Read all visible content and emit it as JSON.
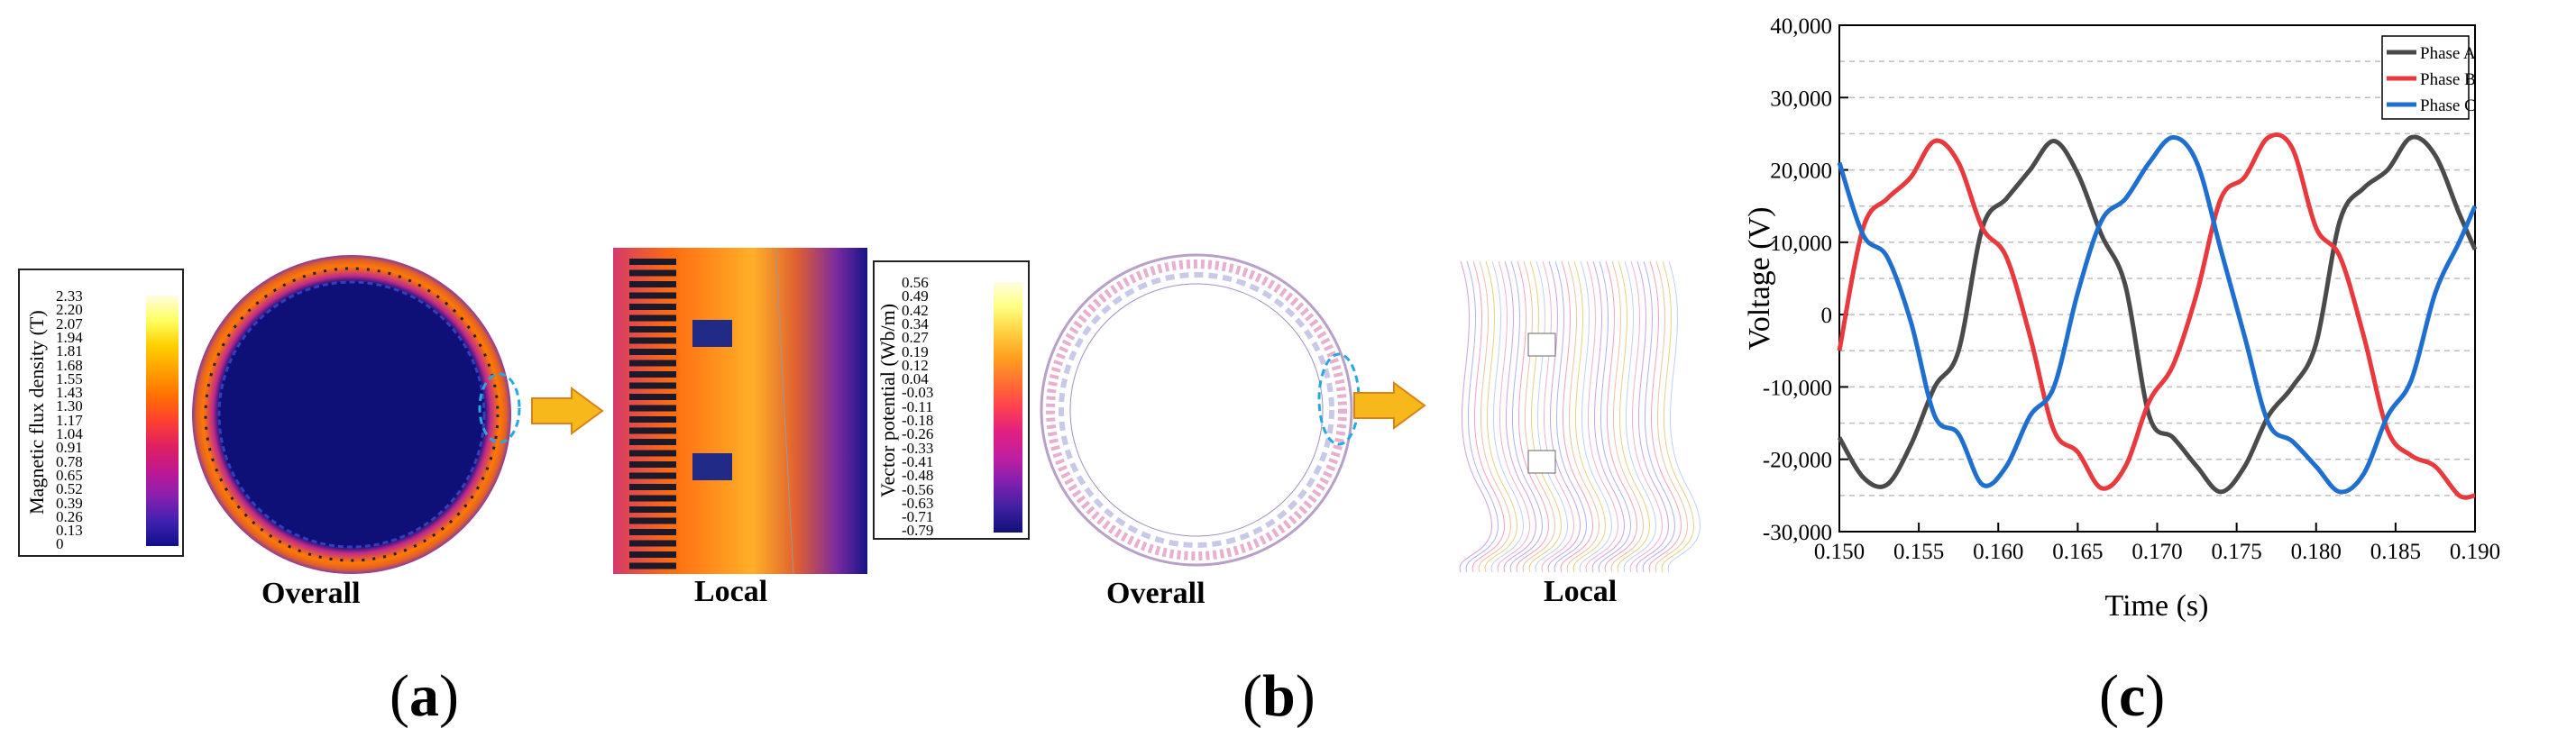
{
  "panel_a": {
    "legend_title": "Magnetic flux density (T)",
    "legend_ticks": [
      "2.33",
      "2.20",
      "2.07",
      "1.94",
      "1.81",
      "1.68",
      "1.55",
      "1.43",
      "1.30",
      "1.17",
      "1.04",
      "0.91",
      "0.78",
      "0.65",
      "0.52",
      "0.39",
      "0.26",
      "0.13",
      "0"
    ],
    "overall_caption": "Overall",
    "local_caption": "Local",
    "label_prefix": "(",
    "label_letter": "a",
    "label_suffix": ")"
  },
  "panel_b": {
    "legend_title": "Vector potential (Wb/m)",
    "legend_ticks": [
      "0.56",
      "0.49",
      "0.42",
      "0.34",
      "0.27",
      "0.19",
      "0.12",
      "0.04",
      "-0.03",
      "-0.11",
      "-0.18",
      "-0.26",
      "-0.33",
      "-0.41",
      "-0.48",
      "-0.56",
      "-0.63",
      "-0.71",
      "-0.79"
    ],
    "overall_caption": "Overall",
    "local_caption": "Local",
    "label_prefix": "(",
    "label_letter": "b",
    "label_suffix": ")"
  },
  "panel_c": {
    "label_prefix": "(",
    "label_letter": "c",
    "label_suffix": ")"
  },
  "colors": {
    "phase_a": "#4a4a4a",
    "phase_b": "#e8393d",
    "phase_c": "#1f6fd1",
    "dashed_highlight": "#29a8e0",
    "arrow_fill": "#f6b81a"
  },
  "chart_data": {
    "type": "line",
    "title": "",
    "xlabel": "Time (s)",
    "ylabel": "Voltage (V)",
    "xlim": [
      0.15,
      0.19
    ],
    "ylim": [
      -30000,
      40000
    ],
    "x_ticks": [
      "0.150",
      "0.155",
      "0.160",
      "0.165",
      "0.170",
      "0.175",
      "0.180",
      "0.185",
      "0.190"
    ],
    "y_ticks": [
      "-30,000",
      "-20,000",
      "-10,000",
      "0",
      "10,000",
      "20,000",
      "30,000",
      "40,000"
    ],
    "grid": true,
    "legend_position": "top-right",
    "series": [
      {
        "name": "Phase A",
        "color": "#4a4a4a",
        "x": [
          0.15,
          0.1515,
          0.153,
          0.1545,
          0.156,
          0.1575,
          0.159,
          0.1605,
          0.162,
          0.1635,
          0.165,
          0.1665,
          0.168,
          0.1695,
          0.171,
          0.1725,
          0.174,
          0.1755,
          0.177,
          0.1785,
          0.18,
          0.1815,
          0.183,
          0.1845,
          0.186,
          0.1875,
          0.189,
          0.19
        ],
        "y": [
          -17000,
          -22500,
          -23500,
          -18000,
          -10000,
          -5000,
          12000,
          16000,
          20000,
          24000,
          19500,
          11000,
          4000,
          -14000,
          -17000,
          -21000,
          -24500,
          -21000,
          -14000,
          -10000,
          -4000,
          13000,
          17500,
          20000,
          24500,
          22000,
          14000,
          9000
        ]
      },
      {
        "name": "Phase B",
        "color": "#e8393d",
        "x": [
          0.15,
          0.1515,
          0.153,
          0.1545,
          0.156,
          0.1575,
          0.159,
          0.1605,
          0.162,
          0.1635,
          0.165,
          0.1665,
          0.168,
          0.1695,
          0.171,
          0.1725,
          0.174,
          0.1755,
          0.177,
          0.1785,
          0.18,
          0.1815,
          0.183,
          0.1845,
          0.186,
          0.1875,
          0.189,
          0.19
        ],
        "y": [
          -5000,
          12000,
          16000,
          19000,
          24000,
          21000,
          12000,
          8000,
          -3000,
          -16000,
          -19000,
          -24000,
          -21000,
          -12000,
          -7000,
          3000,
          16000,
          19000,
          24500,
          23000,
          12000,
          8000,
          -3000,
          -16000,
          -19500,
          -21000,
          -25000,
          -25000
        ]
      },
      {
        "name": "Phase C",
        "color": "#1f6fd1",
        "x": [
          0.15,
          0.1515,
          0.153,
          0.1545,
          0.156,
          0.1575,
          0.159,
          0.1605,
          0.162,
          0.1635,
          0.165,
          0.1665,
          0.168,
          0.1695,
          0.171,
          0.1725,
          0.174,
          0.1755,
          0.177,
          0.1785,
          0.18,
          0.1815,
          0.183,
          0.1845,
          0.186,
          0.1875,
          0.189,
          0.19
        ],
        "y": [
          21000,
          11000,
          8000,
          -1000,
          -14000,
          -16500,
          -23500,
          -21000,
          -14000,
          -10000,
          3000,
          13000,
          16000,
          21000,
          24500,
          21000,
          9000,
          -3000,
          -15000,
          -17500,
          -21000,
          -24500,
          -22000,
          -14000,
          -9000,
          3000,
          10000,
          15000
        ]
      }
    ]
  }
}
